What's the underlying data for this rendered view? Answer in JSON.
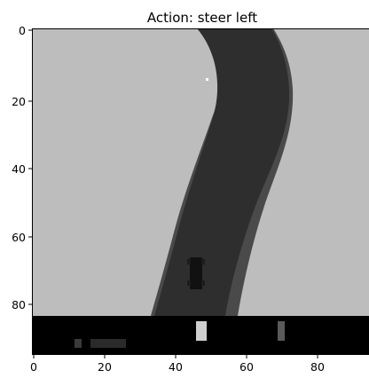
{
  "title": "Action: steer left",
  "frame": {
    "width": 96,
    "height": 96,
    "grass_color": "#bdbdbd",
    "road_color": "#2e2e2e",
    "road_edge_color": "#4a4a4a",
    "hud_color": "#000000",
    "car_color": "#111111",
    "marker_color": "#ffffff"
  },
  "axes": {
    "x_ticks": [
      "0",
      "20",
      "40",
      "60",
      "80"
    ],
    "y_ticks": [
      "0",
      "20",
      "40",
      "60",
      "80"
    ]
  }
}
